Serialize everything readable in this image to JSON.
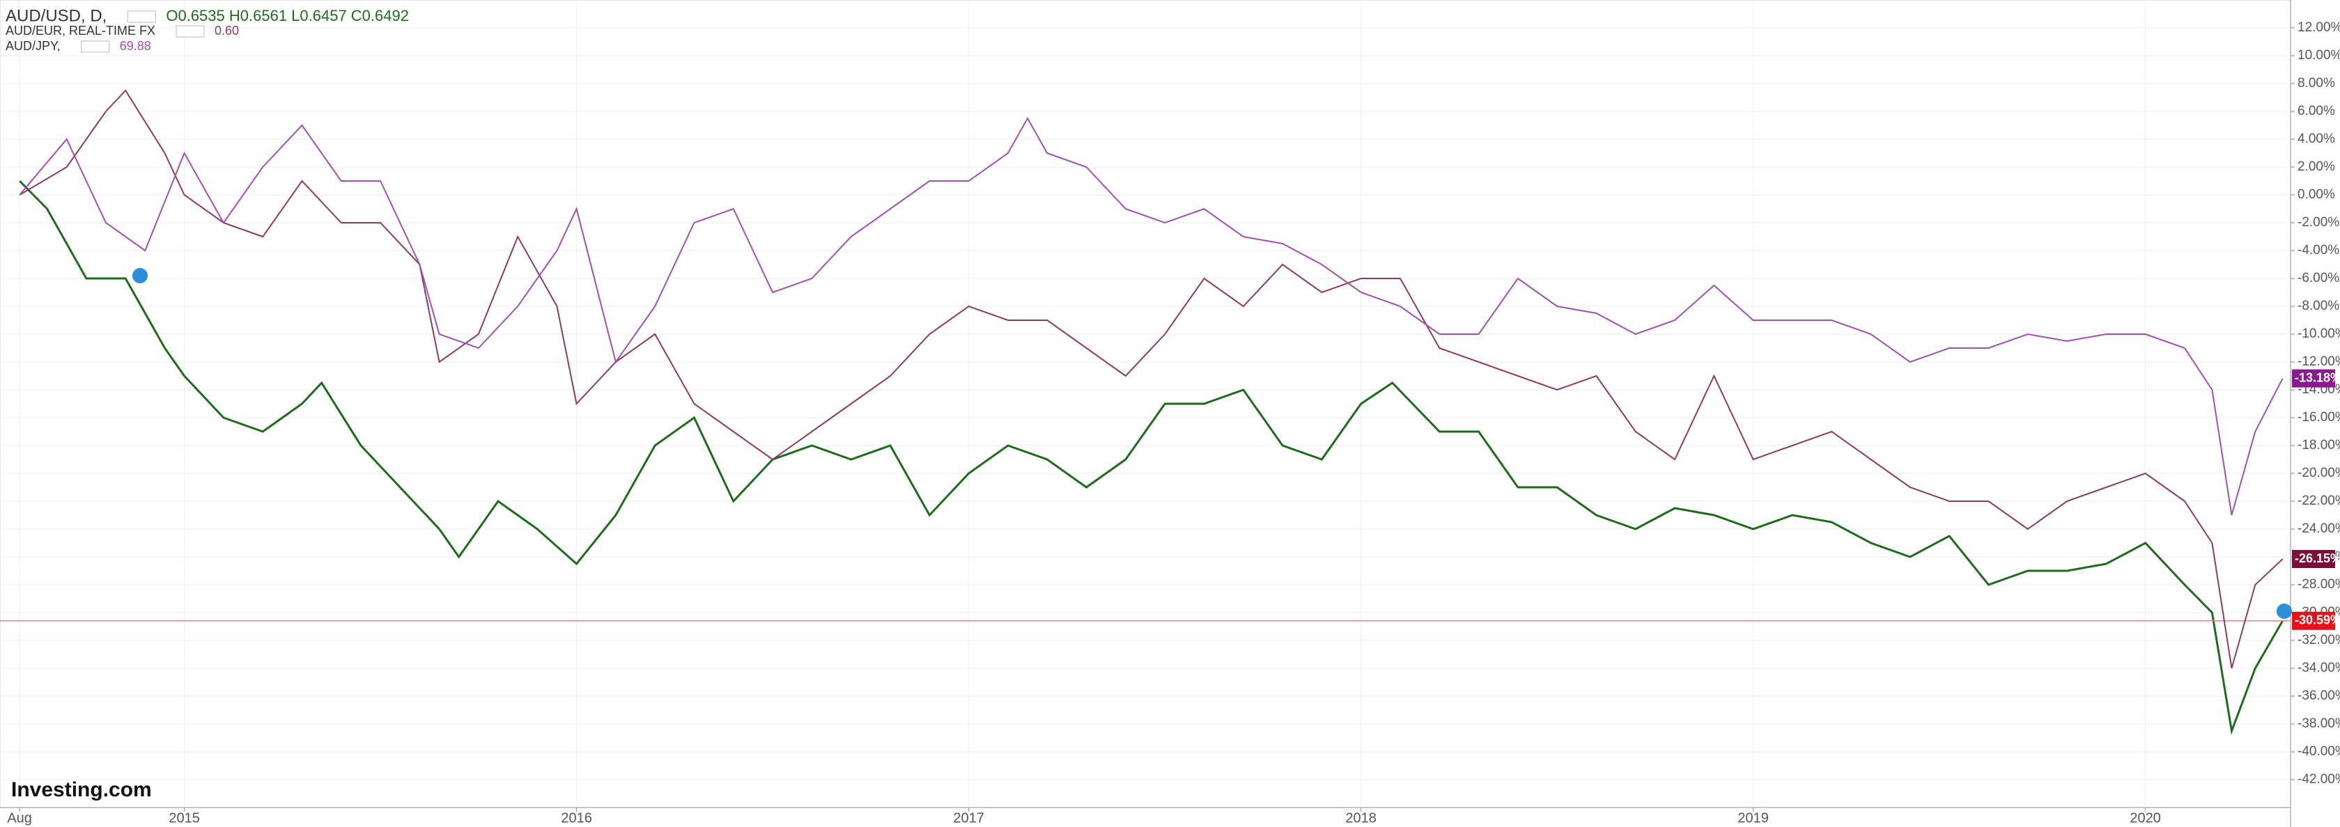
{
  "chart_data": {
    "type": "line",
    "logo": "Investing.com",
    "xlim": [
      2014.53,
      2020.37
    ],
    "xticks": [
      {
        "value": 2014.58,
        "label": "Aug"
      },
      2015,
      2016,
      2017,
      2018,
      2019,
      2020
    ],
    "ylim": [
      -44,
      14
    ],
    "yticks": [
      {
        "value": 12,
        "label": "12.00%"
      },
      {
        "value": 10,
        "label": "10.00%"
      },
      {
        "value": 8,
        "label": "8.00%"
      },
      {
        "value": 6,
        "label": "6.00%"
      },
      {
        "value": 4,
        "label": "4.00%"
      },
      {
        "value": 2,
        "label": "2.00%"
      },
      {
        "value": 0,
        "label": "0.00%"
      },
      {
        "value": -2,
        "label": "-2.00%"
      },
      {
        "value": -4,
        "label": "-4.00%"
      },
      {
        "value": -6,
        "label": "-6.00%"
      },
      {
        "value": -8,
        "label": "-8.00%"
      },
      {
        "value": -10,
        "label": "-10.00%"
      },
      {
        "value": -12,
        "label": "-12.00%"
      },
      {
        "value": -14,
        "label": "-14.00%"
      },
      {
        "value": -16,
        "label": "-16.00%"
      },
      {
        "value": -18,
        "label": "-18.00%"
      },
      {
        "value": -20,
        "label": "-20.00%"
      },
      {
        "value": -22,
        "label": "-22.00%"
      },
      {
        "value": -24,
        "label": "-24.00%"
      },
      {
        "value": -26,
        "label": "-26.00%"
      },
      {
        "value": -28,
        "label": "-28.00%"
      },
      {
        "value": -30,
        "label": "-30.00%"
      },
      {
        "value": -32,
        "label": "-32.00%"
      },
      {
        "value": -34,
        "label": "-34.00%"
      },
      {
        "value": -36,
        "label": "-36.00%"
      },
      {
        "value": -38,
        "label": "-38.00%"
      },
      {
        "value": -40,
        "label": "-40.00%"
      },
      {
        "value": -42,
        "label": "-42.00%"
      }
    ],
    "grid": true,
    "series": [
      {
        "name": "AUD/USD, D,",
        "legend_value": "O0.6535 H0.6561 L0.6457 C0.6492",
        "color": "#1e6b1e",
        "tag_color": "#e8101a",
        "tag": "-30.59%",
        "price_line": true,
        "x": [
          2014.58,
          2014.65,
          2014.75,
          2014.85,
          2014.95,
          2015.0,
          2015.1,
          2015.2,
          2015.3,
          2015.35,
          2015.45,
          2015.55,
          2015.65,
          2015.7,
          2015.8,
          2015.9,
          2016.0,
          2016.1,
          2016.2,
          2016.3,
          2016.4,
          2016.5,
          2016.6,
          2016.7,
          2016.8,
          2016.9,
          2017.0,
          2017.1,
          2017.2,
          2017.3,
          2017.4,
          2017.5,
          2017.6,
          2017.7,
          2017.8,
          2017.9,
          2018.0,
          2018.08,
          2018.2,
          2018.3,
          2018.4,
          2018.5,
          2018.6,
          2018.7,
          2018.8,
          2018.9,
          2019.0,
          2019.1,
          2019.2,
          2019.3,
          2019.4,
          2019.5,
          2019.6,
          2019.7,
          2019.8,
          2019.9,
          2020.0,
          2020.1,
          2020.17,
          2020.22,
          2020.28,
          2020.35
        ],
        "values": [
          1,
          -1,
          -6,
          -6,
          -11,
          -13,
          -16,
          -17,
          -15,
          -13.5,
          -18,
          -21,
          -24,
          -26,
          -22,
          -24,
          -26.5,
          -23,
          -18,
          -16,
          -22,
          -19,
          -18,
          -19,
          -18,
          -23,
          -20,
          -18,
          -19,
          -21,
          -19,
          -15,
          -15,
          -14,
          -18,
          -19,
          -15,
          -13.5,
          -17,
          -17,
          -21,
          -21,
          -23,
          -24,
          -22.5,
          -23,
          -24,
          -23,
          -23.5,
          -25,
          -26,
          -24.5,
          -28,
          -27,
          -27,
          -26.5,
          -25,
          -28,
          -30,
          -38.5,
          -34,
          -30.59
        ]
      },
      {
        "name": "AUD/EUR, REAL-TIME FX",
        "legend_value": "0.60",
        "color": "#8b3a62",
        "tag_color": "#7a0f3a",
        "tag": "-26.15%",
        "x": [
          2014.58,
          2014.7,
          2014.8,
          2014.85,
          2014.95,
          2015.0,
          2015.1,
          2015.2,
          2015.3,
          2015.4,
          2015.5,
          2015.6,
          2015.65,
          2015.75,
          2015.85,
          2015.95,
          2016.0,
          2016.1,
          2016.2,
          2016.3,
          2016.4,
          2016.5,
          2016.6,
          2016.7,
          2016.8,
          2016.9,
          2017.0,
          2017.1,
          2017.2,
          2017.3,
          2017.4,
          2017.5,
          2017.6,
          2017.7,
          2017.8,
          2017.9,
          2018.0,
          2018.1,
          2018.2,
          2018.3,
          2018.4,
          2018.5,
          2018.6,
          2018.7,
          2018.8,
          2018.9,
          2019.0,
          2019.1,
          2019.2,
          2019.3,
          2019.4,
          2019.5,
          2019.6,
          2019.7,
          2019.8,
          2019.9,
          2020.0,
          2020.1,
          2020.17,
          2020.22,
          2020.28,
          2020.35
        ],
        "values": [
          0,
          2,
          6,
          7.5,
          3,
          0,
          -2,
          -3,
          1,
          -2,
          -2,
          -5,
          -12,
          -10,
          -3,
          -8,
          -15,
          -12,
          -10,
          -15,
          -17,
          -19,
          -17,
          -15,
          -13,
          -10,
          -8,
          -9,
          -9,
          -11,
          -13,
          -10,
          -6,
          -8,
          -5,
          -7,
          -6,
          -6,
          -11,
          -12,
          -13,
          -14,
          -13,
          -17,
          -19,
          -13,
          -19,
          -18,
          -17,
          -19,
          -21,
          -22,
          -22,
          -24,
          -22,
          -21,
          -20,
          -22,
          -25,
          -34,
          -28,
          -26.15
        ]
      },
      {
        "name": "AUD/JPY,",
        "legend_value": "69.88",
        "color": "#a050b0",
        "tag_color": "#8a1a8e",
        "tag": "-13.18%",
        "x": [
          2014.58,
          2014.7,
          2014.8,
          2014.9,
          2015.0,
          2015.1,
          2015.2,
          2015.3,
          2015.4,
          2015.5,
          2015.6,
          2015.65,
          2015.75,
          2015.85,
          2015.95,
          2016.0,
          2016.1,
          2016.2,
          2016.3,
          2016.4,
          2016.5,
          2016.6,
          2016.7,
          2016.8,
          2016.9,
          2017.0,
          2017.1,
          2017.15,
          2017.2,
          2017.3,
          2017.4,
          2017.5,
          2017.6,
          2017.7,
          2017.8,
          2017.9,
          2018.0,
          2018.1,
          2018.2,
          2018.3,
          2018.4,
          2018.5,
          2018.6,
          2018.7,
          2018.8,
          2018.9,
          2019.0,
          2019.1,
          2019.2,
          2019.3,
          2019.4,
          2019.5,
          2019.6,
          2019.7,
          2019.8,
          2019.9,
          2020.0,
          2020.1,
          2020.17,
          2020.22,
          2020.28,
          2020.35
        ],
        "values": [
          0,
          4,
          -2,
          -4,
          3,
          -2,
          2,
          5,
          1,
          1,
          -5,
          -10,
          -11,
          -8,
          -4,
          -1,
          -12,
          -8,
          -2,
          -1,
          -7,
          -6,
          -3,
          -1,
          1,
          1,
          3,
          5.5,
          3,
          2,
          -1,
          -2,
          -1,
          -3,
          -3.5,
          -5,
          -7,
          -8,
          -10,
          -10,
          -6,
          -8,
          -8.5,
          -10,
          -9,
          -6.5,
          -9,
          -9,
          -9,
          -10,
          -12,
          -11,
          -11,
          -10,
          -10.5,
          -10,
          -10,
          -11,
          -14,
          -23,
          -17,
          -13.18
        ]
      }
    ]
  }
}
